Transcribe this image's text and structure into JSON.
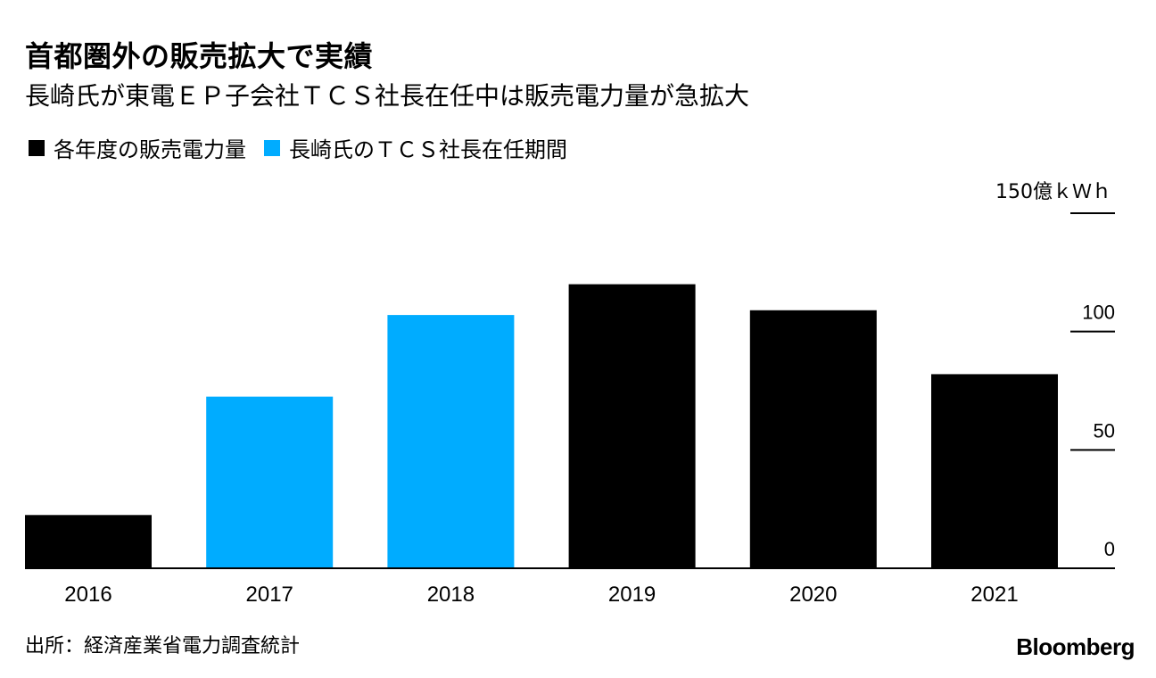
{
  "title": "首都圏外の販売拡大で実績",
  "subtitle": "長崎氏が東電ＥＰ子会社ＴＣＳ社長在任中は販売電力量が急拡大",
  "legend": [
    {
      "label": "各年度の販売電力量",
      "color": "#000000"
    },
    {
      "label": "長崎氏のＴＣＳ社長在任期間",
      "color": "#00acff"
    }
  ],
  "unit_label": "150億ｋＷｈ",
  "source": "出所：経済産業省電力調査統計",
  "brand": "Bloomberg",
  "chart_data": {
    "type": "bar",
    "title": "首都圏外の販売拡大で実績",
    "subtitle": "長崎氏が東電ＥＰ子会社ＴＣＳ社長在任中は販売電力量が急拡大",
    "categories": [
      "2016",
      "2017",
      "2018",
      "2019",
      "2020",
      "2021"
    ],
    "values": [
      22.5,
      72.5,
      107,
      120,
      109,
      82
    ],
    "highlight": [
      false,
      true,
      true,
      false,
      false,
      false
    ],
    "colors": {
      "default": "#000000",
      "highlight": "#00acff"
    },
    "ylim": [
      0,
      150
    ],
    "yticks": [
      0,
      50,
      100,
      150
    ],
    "ytick_labels": [
      "0",
      "50",
      "100",
      "150億ｋＷｈ"
    ],
    "xlabel": "",
    "ylabel": "億ｋＷｈ",
    "axis_side": "right",
    "legend_position": "top-left"
  }
}
